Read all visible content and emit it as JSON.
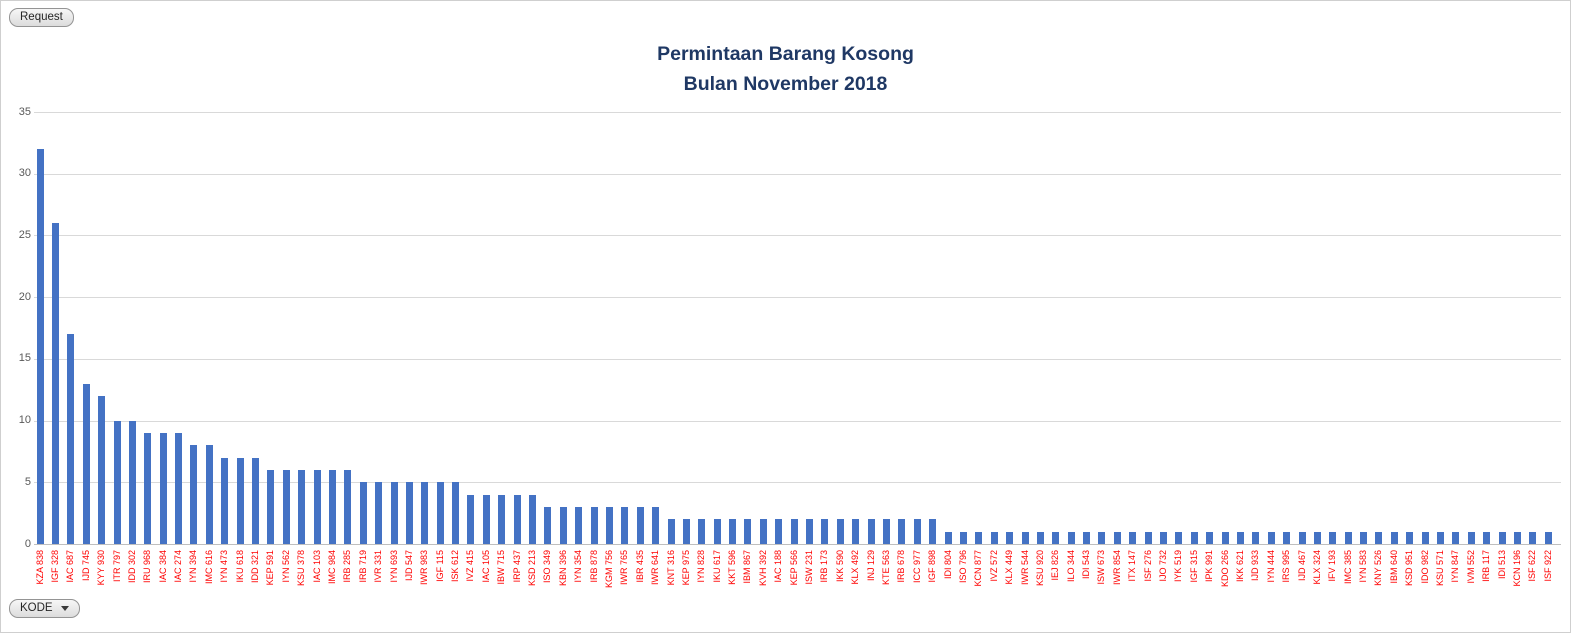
{
  "pivot_buttons": {
    "request_label": "Request",
    "kode_label": "KODE"
  },
  "chart_data": {
    "type": "bar",
    "title_line1": "Permintaan Barang Kosong",
    "title_line2": "Bulan November 2018",
    "xlabel": "",
    "ylabel": "",
    "ylim": [
      0,
      35
    ],
    "yticks": [
      0,
      5,
      10,
      15,
      20,
      25,
      30,
      35
    ],
    "grid": true,
    "legend": "none",
    "bar_color": "#4472C4",
    "gridline_color": "#D9D9D9",
    "axis_line_color": "#BFBFBF",
    "ytick_color": "#595959",
    "category_label_color": "#FF0000",
    "title_color": "#1F3864",
    "categories": [
      "KZA 838",
      "IGF 328",
      "IAC 687",
      "IJD 745",
      "KYY 930",
      "ITR 797",
      "IDD 302",
      "IRU 968",
      "IAC 384",
      "IAC 274",
      "IYN 394",
      "IMC 616",
      "IYN 473",
      "IKU 618",
      "IDD 321",
      "KEP 591",
      "IYN 562",
      "KSU 378",
      "IAC 103",
      "IMC 984",
      "IRB 285",
      "IRB 719",
      "IVR 331",
      "IYN 693",
      "IJD 547",
      "IWR 983",
      "IGF 115",
      "ISK 612",
      "IVZ 415",
      "IAC 105",
      "IBW 715",
      "IRP 437",
      "KSD 213",
      "ISO 349",
      "KBN 396",
      "IYN 354",
      "IRB 878",
      "KGM 756",
      "IWR 765",
      "IBR 435",
      "IWR 641",
      "KNT 316",
      "KEP 975",
      "IYN 828",
      "IKU 617",
      "KKT 596",
      "IBM 867",
      "KVH 392",
      "IAC 188",
      "KEP 566",
      "ISW 231",
      "IRB 173",
      "IKK 590",
      "KLX 492",
      "INJ 129",
      "KTE 563",
      "IRB 678",
      "ICC 977",
      "IGF 898",
      "IDI 804",
      "ISO 796",
      "KCN 877",
      "IVZ 572",
      "KLX 449",
      "IWR 544",
      "KSU 920",
      "IEJ 826",
      "ILO 344",
      "IDI 543",
      "ISW 673",
      "IWR 854",
      "ITX 147",
      "ISF 276",
      "IJO 732",
      "IYK 519",
      "IGF 315",
      "IPK 991",
      "KDO 266",
      "IKK 621",
      "IJD 933",
      "IYN 444",
      "IRS 995",
      "IJD 467",
      "KLX 324",
      "IFV 193",
      "IMC 385",
      "IYN 583",
      "KNY 526",
      "IBM 640",
      "KSD 951",
      "IDO 982",
      "KSU 571",
      "IYN 847",
      "IVM 552",
      "IRB 117",
      "IDI 513",
      "KCN 196",
      "ISF 622",
      "ISF 922"
    ],
    "values": [
      32,
      26,
      17,
      13,
      12,
      10,
      10,
      9,
      9,
      9,
      8,
      8,
      7,
      7,
      7,
      6,
      6,
      6,
      6,
      6,
      6,
      5,
      5,
      5,
      5,
      5,
      5,
      5,
      4,
      4,
      4,
      4,
      4,
      3,
      3,
      3,
      3,
      3,
      3,
      3,
      3,
      2,
      2,
      2,
      2,
      2,
      2,
      2,
      2,
      2,
      2,
      2,
      2,
      2,
      2,
      2,
      2,
      2,
      2,
      1,
      1,
      1,
      1,
      1,
      1,
      1,
      1,
      1,
      1,
      1,
      1,
      1,
      1,
      1,
      1,
      1,
      1,
      1,
      1,
      1,
      1,
      1,
      1,
      1,
      1,
      1,
      1,
      1,
      1,
      1,
      1,
      1,
      1,
      1,
      1,
      1,
      1,
      1,
      1
    ]
  }
}
